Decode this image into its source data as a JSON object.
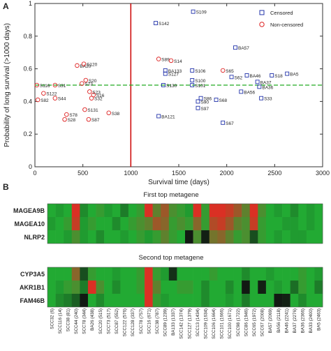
{
  "panel_a_label": "A",
  "panel_b_label": "B",
  "chart_data": [
    {
      "type": "scatter",
      "xlabel": "Survival time (days)",
      "ylabel": "Probability of long survival (>1000 days)",
      "xlim": [
        0,
        3000
      ],
      "ylim": [
        0,
        1
      ],
      "xticks": [
        "0",
        "500",
        "1000",
        "1500",
        "2000",
        "2500",
        "3000"
      ],
      "yticks": [
        "0",
        "0.2",
        "0.4",
        "0.6",
        "0.8",
        "1"
      ],
      "threshold_x": 1000,
      "threshold_y": 0.5,
      "grid": false,
      "legend_position": "top-right",
      "colors": {
        "censored": "#2233aa",
        "non_censored": "#dd2222",
        "vline": "#cc0000",
        "hline": "#22aa22"
      },
      "series": [
        {
          "name": "Censored",
          "marker": "square",
          "points": [
            {
              "x": 1260,
              "y": 0.88,
              "label": "S142"
            },
            {
              "x": 1650,
              "y": 0.95,
              "label": "S109"
            },
            {
              "x": 2090,
              "y": 0.73,
              "label": "BA57"
            },
            {
              "x": 1360,
              "y": 0.59,
              "label": "BA133"
            },
            {
              "x": 1360,
              "y": 0.57,
              "label": "S127"
            },
            {
              "x": 1640,
              "y": 0.59,
              "label": "S106"
            },
            {
              "x": 1640,
              "y": 0.53,
              "label": "S100"
            },
            {
              "x": 1640,
              "y": 0.5,
              "label": "S101"
            },
            {
              "x": 1340,
              "y": 0.5,
              "label": "S130"
            },
            {
              "x": 1730,
              "y": 0.42,
              "label": "S86"
            },
            {
              "x": 1700,
              "y": 0.4,
              "label": "S90"
            },
            {
              "x": 1700,
              "y": 0.36,
              "label": "S97"
            },
            {
              "x": 1890,
              "y": 0.41,
              "label": "S68"
            },
            {
              "x": 1290,
              "y": 0.31,
              "label": "BA121"
            },
            {
              "x": 1960,
              "y": 0.27,
              "label": "S67"
            },
            {
              "x": 2050,
              "y": 0.55,
              "label": "S62"
            },
            {
              "x": 2210,
              "y": 0.56,
              "label": "BA46"
            },
            {
              "x": 2470,
              "y": 0.56,
              "label": "S18"
            },
            {
              "x": 2630,
              "y": 0.57,
              "label": "BA5"
            },
            {
              "x": 2320,
              "y": 0.52,
              "label": "BA37"
            },
            {
              "x": 2340,
              "y": 0.49,
              "label": "BA36"
            },
            {
              "x": 2150,
              "y": 0.46,
              "label": "BA56"
            },
            {
              "x": 2360,
              "y": 0.42,
              "label": "S33"
            }
          ]
        },
        {
          "name": "Non-censored",
          "marker": "circle",
          "points": [
            {
              "x": 20,
              "y": 0.5,
              "label": "S116"
            },
            {
              "x": 210,
              "y": 0.5,
              "label": "S31"
            },
            {
              "x": 30,
              "y": 0.41,
              "label": "S82"
            },
            {
              "x": 90,
              "y": 0.45,
              "label": "S122"
            },
            {
              "x": 210,
              "y": 0.42,
              "label": "S44"
            },
            {
              "x": 490,
              "y": 0.51,
              "label": "S73"
            },
            {
              "x": 530,
              "y": 0.53,
              "label": "S20"
            },
            {
              "x": 440,
              "y": 0.62,
              "label": "BA20"
            },
            {
              "x": 510,
              "y": 0.63,
              "label": "S120"
            },
            {
              "x": 570,
              "y": 0.46,
              "label": "S23"
            },
            {
              "x": 610,
              "y": 0.44,
              "label": "S16"
            },
            {
              "x": 590,
              "y": 0.42,
              "label": "S32"
            },
            {
              "x": 520,
              "y": 0.35,
              "label": "S131"
            },
            {
              "x": 330,
              "y": 0.32,
              "label": "S78"
            },
            {
              "x": 310,
              "y": 0.29,
              "label": "S28"
            },
            {
              "x": 560,
              "y": 0.29,
              "label": "S87"
            },
            {
              "x": 770,
              "y": 0.33,
              "label": "S38"
            },
            {
              "x": 1290,
              "y": 0.66,
              "label": "S89"
            },
            {
              "x": 1420,
              "y": 0.65,
              "label": "S14"
            },
            {
              "x": 1960,
              "y": 0.59,
              "label": "S65"
            }
          ]
        }
      ]
    },
    {
      "type": "heatmap",
      "groups": [
        {
          "title": "First top metagene",
          "rows": [
            "MAGEA9B",
            "MAGEA10",
            "NLRP2"
          ]
        },
        {
          "title": "Second top metagene",
          "rows": [
            "CYP3A5",
            "AKR1B1",
            "FAM46B"
          ]
        }
      ],
      "columns": [
        "SCC32 (6)",
        "SCC116 (14)",
        "SCC38 (81)",
        "SCC44 (240)",
        "SCC78 (344)",
        "BA26 (438)",
        "SCC20 (515)",
        "SCC73 (517)",
        "SCC87 (552)",
        "SCC122 (576)",
        "SCC128 (337)",
        "SCC78 (757)",
        "SCC16 (671)",
        "SCC38 (787)",
        "SCC89 (1239)",
        "BA133 (1337)",
        "SCC142 (1374)",
        "SCC127 (1379)",
        "SCC13 (1434)",
        "SCC109 (1634)",
        "SCC106 (1664)",
        "SCC101 (1666)",
        "SCC100 (1671)",
        "SCC98 (1722)",
        "SCC86 (1946)",
        "SCC65 (1972)",
        "SCC67 (2008)",
        "BA57 (2069)",
        "BA56 (2118)",
        "BA46 (2241)",
        "BA37 (2276)",
        "BA36 (2366)",
        "BA33 (2400)",
        "BA5 (2463)"
      ],
      "color_scale": {
        "low": "#22aa33",
        "mid": "#111111",
        "high": "#ee2222"
      },
      "values": [
        [
          0,
          -0.1,
          0,
          0.9,
          -0.2,
          0,
          0.1,
          -0.1,
          0,
          -0.3,
          0,
          0.1,
          0.9,
          0.3,
          0.6,
          0.2,
          0.1,
          -0.1,
          0.9,
          0.1,
          0.9,
          0.9,
          0.8,
          0.6,
          0.3,
          0.9,
          0.2,
          0,
          -0.1,
          0,
          -0.2,
          0,
          -0.1,
          0
        ],
        [
          -0.1,
          0,
          0.1,
          0.8,
          -0.1,
          0.1,
          0,
          0,
          -0.2,
          0,
          0.1,
          0.2,
          0.3,
          0.6,
          0.5,
          0.1,
          0.2,
          0.1,
          0.5,
          0.1,
          0.7,
          0.8,
          0.6,
          0.3,
          0.2,
          0.8,
          0.1,
          0,
          0,
          -0.1,
          -0.1,
          0,
          -0.1,
          0
        ],
        [
          0,
          0,
          -0.1,
          0.2,
          -0.1,
          0,
          -0.2,
          0,
          0,
          -0.1,
          0,
          0.1,
          -0.1,
          0.1,
          0.3,
          0.1,
          0,
          -0.95,
          0.2,
          -0.9,
          0.4,
          0.5,
          0.3,
          0.1,
          0.2,
          -0.6,
          0.1,
          0,
          -0.1,
          0,
          -0.1,
          -0.1,
          0,
          0
        ],
        [
          0,
          0,
          0,
          0.5,
          -0.6,
          0.1,
          0,
          0,
          -0.1,
          0,
          0,
          0.1,
          0.9,
          0.1,
          -0.1,
          -0.8,
          0,
          0,
          0,
          0,
          0.1,
          0,
          0,
          0,
          -0.2,
          0,
          0,
          -0.1,
          0,
          0,
          0,
          0.1,
          0,
          -0.1
        ],
        [
          0,
          -0.1,
          0.1,
          0.2,
          -0.3,
          0.9,
          0.2,
          0,
          -0.2,
          0,
          0,
          0.1,
          0.9,
          0.3,
          0,
          0,
          0.1,
          0.1,
          0,
          -0.2,
          0,
          0,
          -0.2,
          0,
          -0.95,
          0,
          -0.9,
          0,
          -0.1,
          0,
          -0.4,
          0.1,
          0,
          -0.3
        ],
        [
          0,
          -0.2,
          -0.3,
          -0.5,
          -0.95,
          0,
          -0.2,
          0,
          0,
          0,
          0,
          0,
          0.9,
          0.1,
          -0.1,
          0,
          0,
          0,
          0,
          -0.2,
          0,
          0,
          -0.1,
          0,
          -0.3,
          0,
          0,
          0,
          -0.95,
          -0.9,
          0,
          -0.2,
          0,
          0
        ]
      ]
    }
  ]
}
